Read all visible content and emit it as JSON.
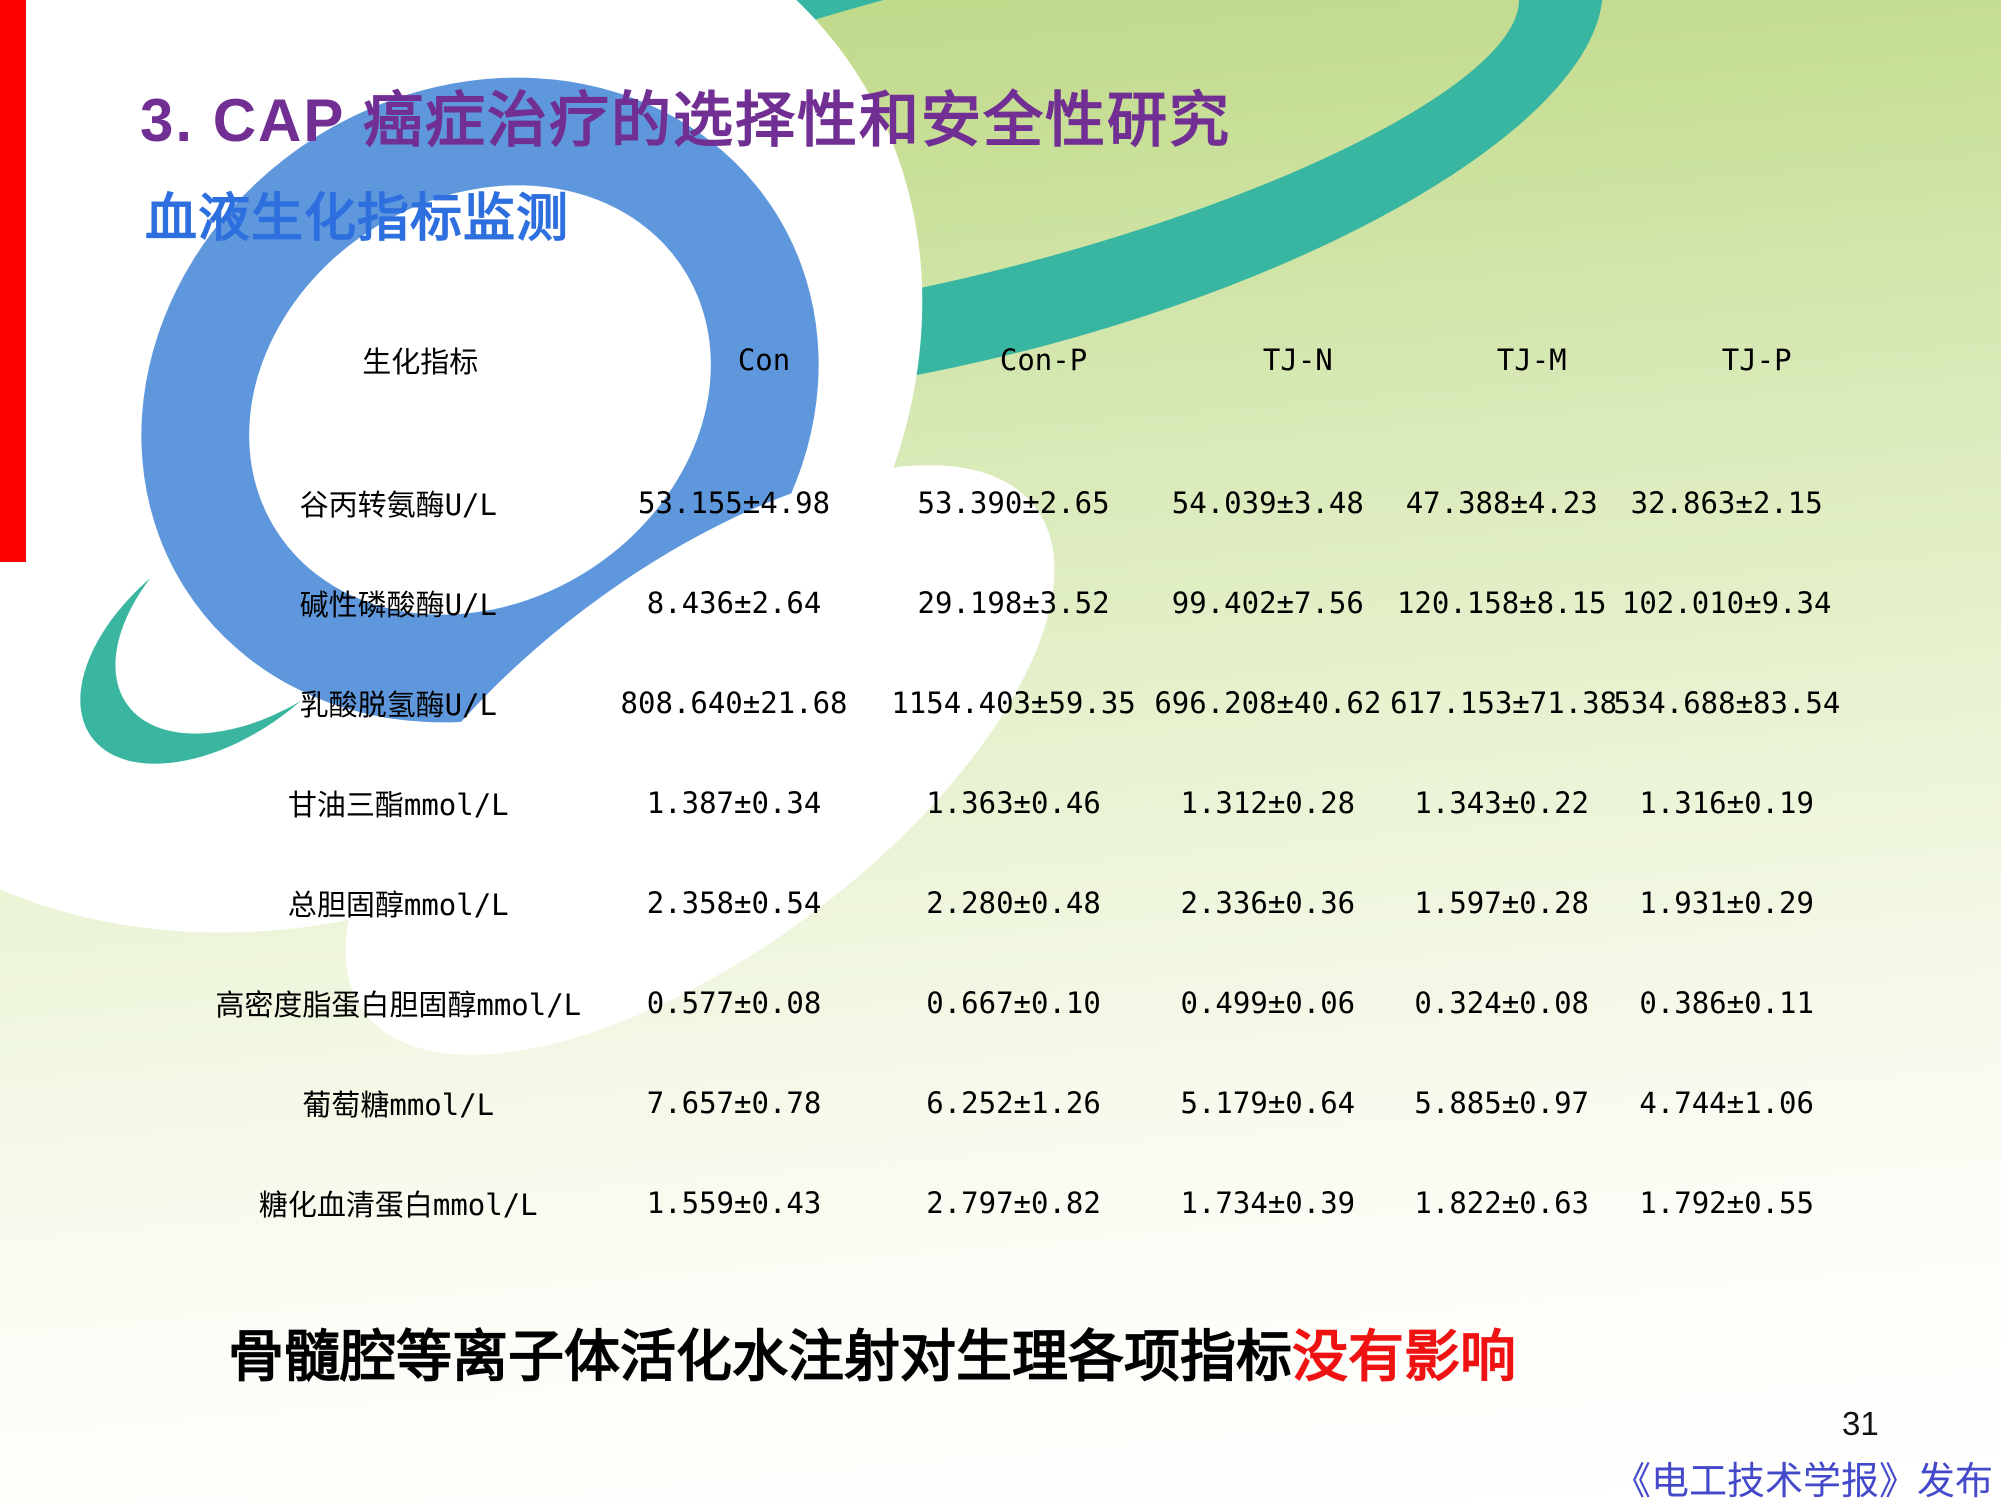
{
  "slide": {
    "title": "3. CAP 癌症治疗的选择性和安全性研究",
    "subtitle": "血液生化指标监测",
    "conclusion_black": "骨髓腔等离子体活化水注射对生理各项指标",
    "conclusion_red": "没有影响",
    "page_number": "31",
    "footer_credit": "《电工技术学报》发布"
  },
  "colors": {
    "title_purple": "#722f93",
    "subtitle_blue": "#2e6fdf",
    "highlight_red": "#ef1212",
    "footer_blue": "#4349c9",
    "logo_blue": "#5e97dc",
    "logo_teal": "#39b6a1",
    "edge_strip_red": "#fb0100"
  },
  "chart_data": {
    "type": "table",
    "title": "血液生化指标监测",
    "columns": [
      "生化指标",
      "Con",
      "Con-P",
      "TJ-N",
      "TJ-M",
      "TJ-P"
    ],
    "rows": [
      {
        "label": "谷丙转氨酶U/L",
        "values": [
          "53.155±4.98",
          "53.390±2.65",
          "54.039±3.48",
          "47.388±4.23",
          "32.863±2.15"
        ]
      },
      {
        "label": "碱性磷酸酶U/L",
        "values": [
          "8.436±2.64",
          "29.198±3.52",
          "99.402±7.56",
          "120.158±8.15",
          "102.010±9.34"
        ]
      },
      {
        "label": "乳酸脱氢酶U/L",
        "values": [
          "808.640±21.68",
          "1154.403±59.35",
          "696.208±40.62",
          "617.153±71.38",
          "534.688±83.54"
        ]
      },
      {
        "label": "甘油三酯mmol/L",
        "values": [
          "1.387±0.34",
          "1.363±0.46",
          "1.312±0.28",
          "1.343±0.22",
          "1.316±0.19"
        ]
      },
      {
        "label": "总胆固醇mmol/L",
        "values": [
          "2.358±0.54",
          "2.280±0.48",
          "2.336±0.36",
          "1.597±0.28",
          "1.931±0.29"
        ]
      },
      {
        "label": "高密度脂蛋白胆固醇mmol/L",
        "values": [
          "0.577±0.08",
          "0.667±0.10",
          "0.499±0.06",
          "0.324±0.08",
          "0.386±0.11"
        ]
      },
      {
        "label": "葡萄糖mmol/L",
        "values": [
          "7.657±0.78",
          "6.252±1.26",
          "5.179±0.64",
          "5.885±0.97",
          "4.744±1.06"
        ]
      },
      {
        "label": "糖化血清蛋白mmol/L",
        "values": [
          "1.559±0.43",
          "2.797±0.82",
          "1.734±0.39",
          "1.822±0.63",
          "1.792±0.55"
        ]
      }
    ]
  }
}
